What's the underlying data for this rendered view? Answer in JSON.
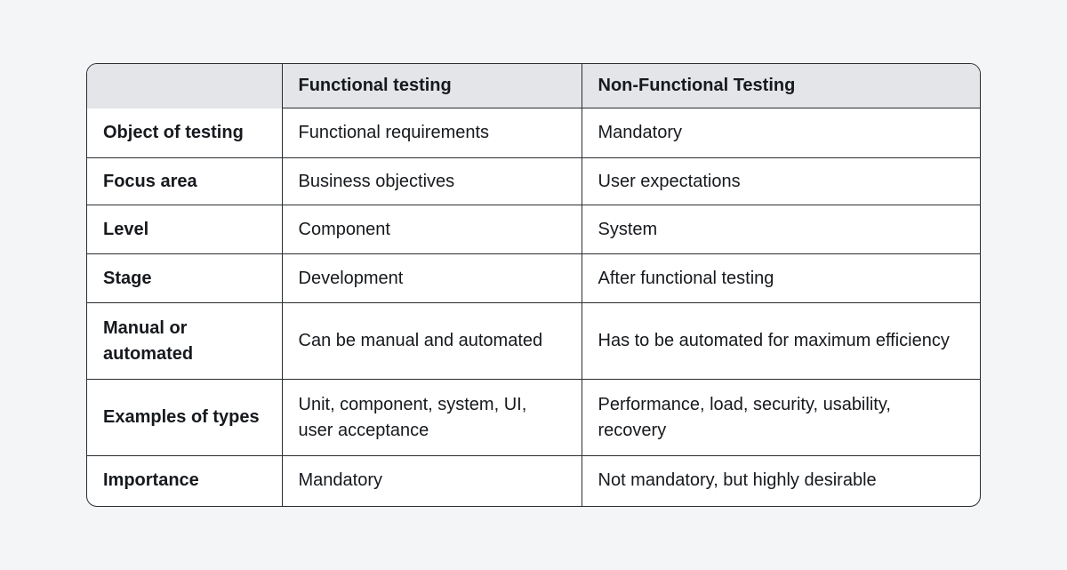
{
  "table": {
    "columns": [
      "Functional testing",
      "Non-Functional Testing"
    ],
    "rows": [
      [
        "Object of testing",
        "Functional requirements",
        "Mandatory"
      ],
      [
        "Focus area",
        "Business objectives",
        "User expectations"
      ],
      [
        "Level",
        "Component",
        "System"
      ],
      [
        "Stage",
        "Development",
        "After functional testing"
      ],
      [
        "Manual or automated",
        "Can be manual and automated",
        "Has to be automated for maximum efficiency"
      ],
      [
        "Examples of types",
        "Unit, component, system, UI, user acceptance",
        "Performance, load, security, usability, recovery"
      ],
      [
        "Importance",
        "Mandatory",
        "Not mandatory, but highly desirable"
      ]
    ]
  }
}
